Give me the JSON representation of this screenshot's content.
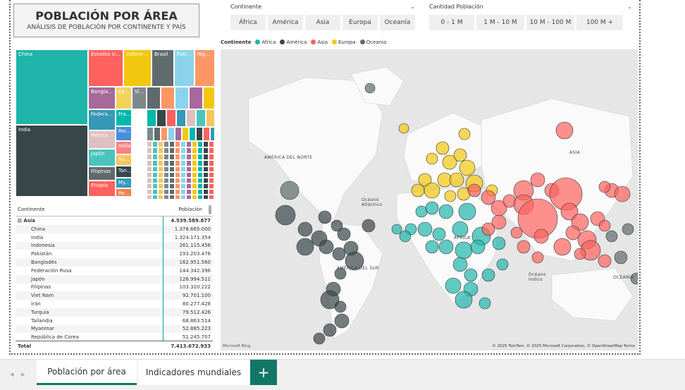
{
  "title": {
    "main": "POBLACIÓN POR ÁREA",
    "subtitle": "ANÁLISIS DE POBLACIÓN POR CONTINENTE Y PAÍS"
  },
  "slicer_continent": {
    "label": "Continente",
    "options": [
      "África",
      "América",
      "Asia",
      "Europa",
      "Oceanía"
    ]
  },
  "slicer_population": {
    "label": "Cantidad Población",
    "options": [
      "0 - 1 M",
      "1 M - 10 M",
      "10 M - 100 M",
      "100 M +"
    ]
  },
  "treemap": {
    "tiles": [
      {
        "label": "China",
        "color": "#1fb5aa"
      },
      {
        "label": "India",
        "color": "#374649"
      },
      {
        "label": "Estados U...",
        "color": "#fd625e"
      },
      {
        "label": "Indone...",
        "color": "#f2c80f"
      },
      {
        "label": "Brasil",
        "color": "#5f6b6d"
      },
      {
        "label": "Paki...",
        "color": "#8ad4eb"
      },
      {
        "label": "Nig...",
        "color": "#fe9666"
      },
      {
        "label": "Bangla...",
        "color": "#a66999"
      },
      {
        "label": "Eg...",
        "color": "#f4d25a"
      },
      {
        "label": "Vi...",
        "color": "#7f898a"
      },
      {
        "label": "Federa...",
        "color": "#3599b8"
      },
      {
        "label": "Fra...",
        "color": "#01b8aa"
      },
      {
        "label": "México",
        "color": "#dfbfbf"
      },
      {
        "label": "Rei...",
        "color": "#4a8ddc"
      },
      {
        "label": "Japón",
        "color": "#4ac5bb"
      },
      {
        "label": "Italia",
        "color": "#fb8281"
      },
      {
        "label": "Su...",
        "color": "#f5c65c"
      },
      {
        "label": "Filipinas",
        "color": "#5f6b6d"
      },
      {
        "label": "Tan...",
        "color": "#374649"
      },
      {
        "label": "My...",
        "color": "#3599b8"
      },
      {
        "label": "Etiopía",
        "color": "#fd625e"
      },
      {
        "label": "Re...",
        "color": "#f2804f"
      }
    ]
  },
  "table": {
    "col_continent": "Continente",
    "col_population": "Población",
    "group": {
      "name": "Asia",
      "value": "4.539.589.877"
    },
    "rows": [
      {
        "name": "China",
        "value": "1.378.665.000"
      },
      {
        "name": "India",
        "value": "1.324.171.354"
      },
      {
        "name": "Indonesia",
        "value": "261.115.456"
      },
      {
        "name": "Pakistán",
        "value": "193.203.476"
      },
      {
        "name": "Bangladés",
        "value": "162.951.560"
      },
      {
        "name": "Federación Rusa",
        "value": "144.342.396"
      },
      {
        "name": "Japón",
        "value": "126.994.511"
      },
      {
        "name": "Filipinas",
        "value": "103.320.222"
      },
      {
        "name": "Viet Nam",
        "value": "92.701.100"
      },
      {
        "name": "Irán",
        "value": "80.277.428"
      },
      {
        "name": "Turquía",
        "value": "79.512.426"
      },
      {
        "name": "Tailandia",
        "value": "68.863.514"
      },
      {
        "name": "Myanmar",
        "value": "52.885.223"
      },
      {
        "name": "República de Corea",
        "value": "51.245.707"
      }
    ],
    "total_label": "Total",
    "total_value": "7.413.672.933"
  },
  "legend": {
    "title": "Continente",
    "items": [
      {
        "label": "África",
        "color": "#1fb5aa"
      },
      {
        "label": "América",
        "color": "#374649"
      },
      {
        "label": "Asia",
        "color": "#fd625e"
      },
      {
        "label": "Europa",
        "color": "#f2c80f"
      },
      {
        "label": "Oceania",
        "color": "#5f6b6d"
      }
    ]
  },
  "map": {
    "labels": {
      "na": "AMÉRICA DEL NORTE",
      "sa": "AMÉRICA DEL SUR",
      "asia": "ASIA",
      "africa": "ÁFRICA",
      "oceania": "OCEANÍA",
      "atl": "Océano Atlántico",
      "ind": "Océano Índico"
    },
    "credit": "© 2025 TomTom, © 2025 Microsoft Corporation, © OpenStreetMap  Terms",
    "bing": "Microsoft Bing"
  },
  "tabs": {
    "tab1": "Población por área",
    "tab2": "Indicadores mundiales",
    "add": "+"
  }
}
